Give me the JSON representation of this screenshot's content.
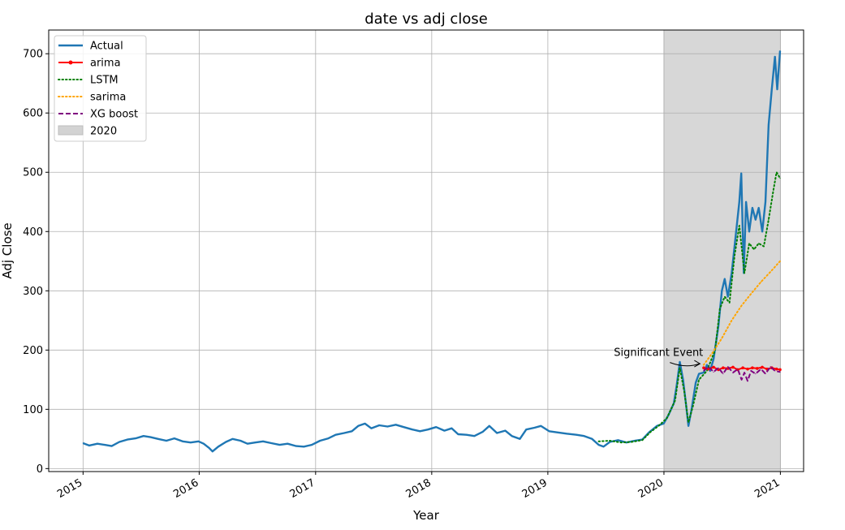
{
  "chart_data": {
    "type": "line",
    "title": "date vs adj close",
    "xlabel": "Year",
    "ylabel": "Adj Close",
    "xlim": [
      "2014-09-15",
      "2021-03-15"
    ],
    "ylim": [
      -5,
      740
    ],
    "x_ticks": [
      "2015",
      "2016",
      "2017",
      "2018",
      "2019",
      "2020",
      "2021"
    ],
    "y_ticks": [
      0,
      100,
      200,
      300,
      400,
      500,
      600,
      700
    ],
    "grid": true,
    "legend_position": "top-left",
    "shaded_region": {
      "label": "2020",
      "start": "2020-01-01",
      "end": "2021-01-01",
      "color": "#d3d3d3"
    },
    "annotation": {
      "text": "Significant Event",
      "point": {
        "x": "2020-05-01",
        "y": 177
      },
      "text_at": {
        "x": "2019-12-15",
        "y": 190
      }
    },
    "series": [
      {
        "name": "Actual",
        "color": "#1f77b4",
        "style": "solid",
        "points": [
          [
            "2015-01-01",
            43
          ],
          [
            "2015-01-20",
            39
          ],
          [
            "2015-02-15",
            42
          ],
          [
            "2015-03-10",
            40
          ],
          [
            "2015-04-01",
            38
          ],
          [
            "2015-04-25",
            45
          ],
          [
            "2015-05-20",
            49
          ],
          [
            "2015-06-15",
            51
          ],
          [
            "2015-07-10",
            55
          ],
          [
            "2015-08-01",
            53
          ],
          [
            "2015-08-25",
            50
          ],
          [
            "2015-09-20",
            47
          ],
          [
            "2015-10-15",
            51
          ],
          [
            "2015-11-10",
            46
          ],
          [
            "2015-12-05",
            44
          ],
          [
            "2015-12-30",
            46
          ],
          [
            "2016-01-15",
            42
          ],
          [
            "2016-02-01",
            35
          ],
          [
            "2016-02-12",
            29
          ],
          [
            "2016-03-01",
            37
          ],
          [
            "2016-03-25",
            45
          ],
          [
            "2016-04-15",
            50
          ],
          [
            "2016-05-10",
            47
          ],
          [
            "2016-06-01",
            42
          ],
          [
            "2016-06-25",
            44
          ],
          [
            "2016-07-20",
            46
          ],
          [
            "2016-08-15",
            43
          ],
          [
            "2016-09-10",
            40
          ],
          [
            "2016-10-05",
            42
          ],
          [
            "2016-11-01",
            38
          ],
          [
            "2016-11-25",
            37
          ],
          [
            "2016-12-20",
            40
          ],
          [
            "2017-01-15",
            47
          ],
          [
            "2017-02-10",
            51
          ],
          [
            "2017-03-05",
            57
          ],
          [
            "2017-04-01",
            60
          ],
          [
            "2017-04-25",
            63
          ],
          [
            "2017-05-15",
            72
          ],
          [
            "2017-06-05",
            76
          ],
          [
            "2017-06-25",
            68
          ],
          [
            "2017-07-20",
            73
          ],
          [
            "2017-08-15",
            71
          ],
          [
            "2017-09-10",
            74
          ],
          [
            "2017-10-05",
            70
          ],
          [
            "2017-11-01",
            66
          ],
          [
            "2017-11-25",
            63
          ],
          [
            "2017-12-20",
            66
          ],
          [
            "2018-01-15",
            70
          ],
          [
            "2018-02-10",
            64
          ],
          [
            "2018-03-05",
            68
          ],
          [
            "2018-03-25",
            58
          ],
          [
            "2018-04-20",
            57
          ],
          [
            "2018-05-15",
            55
          ],
          [
            "2018-06-10",
            62
          ],
          [
            "2018-07-01",
            72
          ],
          [
            "2018-07-25",
            60
          ],
          [
            "2018-08-20",
            64
          ],
          [
            "2018-09-10",
            55
          ],
          [
            "2018-10-05",
            50
          ],
          [
            "2018-10-25",
            66
          ],
          [
            "2018-11-20",
            69
          ],
          [
            "2018-12-10",
            72
          ],
          [
            "2019-01-05",
            63
          ],
          [
            "2019-02-01",
            61
          ],
          [
            "2019-03-01",
            59
          ],
          [
            "2019-04-01",
            57
          ],
          [
            "2019-04-25",
            55
          ],
          [
            "2019-05-20",
            50
          ],
          [
            "2019-06-10",
            40
          ],
          [
            "2019-06-25",
            37
          ],
          [
            "2019-07-15",
            45
          ],
          [
            "2019-08-10",
            48
          ],
          [
            "2019-09-05",
            44
          ],
          [
            "2019-10-01",
            47
          ],
          [
            "2019-10-25",
            49
          ],
          [
            "2019-11-15",
            61
          ],
          [
            "2019-12-10",
            72
          ],
          [
            "2019-12-31",
            76
          ],
          [
            "2020-01-15",
            90
          ],
          [
            "2020-02-01",
            110
          ],
          [
            "2020-02-10",
            140
          ],
          [
            "2020-02-20",
            180
          ],
          [
            "2020-03-01",
            150
          ],
          [
            "2020-03-10",
            110
          ],
          [
            "2020-03-18",
            72
          ],
          [
            "2020-03-28",
            100
          ],
          [
            "2020-04-10",
            145
          ],
          [
            "2020-04-20",
            160
          ],
          [
            "2020-05-05",
            162
          ],
          [
            "2020-05-15",
            175
          ],
          [
            "2020-05-25",
            165
          ],
          [
            "2020-06-05",
            185
          ],
          [
            "2020-06-20",
            240
          ],
          [
            "2020-07-01",
            300
          ],
          [
            "2020-07-10",
            320
          ],
          [
            "2020-07-20",
            290
          ],
          [
            "2020-08-01",
            330
          ],
          [
            "2020-08-15",
            400
          ],
          [
            "2020-08-25",
            450
          ],
          [
            "2020-08-31",
            498
          ],
          [
            "2020-09-08",
            330
          ],
          [
            "2020-09-15",
            450
          ],
          [
            "2020-09-25",
            400
          ],
          [
            "2020-10-05",
            440
          ],
          [
            "2020-10-15",
            420
          ],
          [
            "2020-10-25",
            440
          ],
          [
            "2020-11-05",
            400
          ],
          [
            "2020-11-15",
            450
          ],
          [
            "2020-11-25",
            580
          ],
          [
            "2020-12-05",
            640
          ],
          [
            "2020-12-15",
            695
          ],
          [
            "2020-12-22",
            640
          ],
          [
            "2020-12-31",
            705
          ]
        ]
      },
      {
        "name": "arima",
        "color": "#ff0000",
        "style": "solid-marker",
        "points": [
          [
            "2020-05-05",
            170
          ],
          [
            "2020-05-20",
            168
          ],
          [
            "2020-06-05",
            171
          ],
          [
            "2020-06-20",
            167
          ],
          [
            "2020-07-05",
            170
          ],
          [
            "2020-07-20",
            169
          ],
          [
            "2020-08-05",
            171
          ],
          [
            "2020-08-20",
            167
          ],
          [
            "2020-09-05",
            170
          ],
          [
            "2020-09-20",
            168
          ],
          [
            "2020-10-05",
            170
          ],
          [
            "2020-10-20",
            169
          ],
          [
            "2020-11-05",
            171
          ],
          [
            "2020-11-20",
            168
          ],
          [
            "2020-12-05",
            170
          ],
          [
            "2020-12-20",
            168
          ],
          [
            "2020-12-31",
            167
          ]
        ]
      },
      {
        "name": "LSTM",
        "color": "#008000",
        "style": "dotted",
        "points": [
          [
            "2019-06-10",
            46
          ],
          [
            "2019-07-15",
            47
          ],
          [
            "2019-08-20",
            44
          ],
          [
            "2019-09-20",
            45
          ],
          [
            "2019-10-25",
            48
          ],
          [
            "2019-11-20",
            62
          ],
          [
            "2019-12-15",
            72
          ],
          [
            "2020-01-10",
            85
          ],
          [
            "2020-02-05",
            115
          ],
          [
            "2020-02-20",
            170
          ],
          [
            "2020-03-05",
            130
          ],
          [
            "2020-03-18",
            78
          ],
          [
            "2020-04-01",
            105
          ],
          [
            "2020-04-20",
            150
          ],
          [
            "2020-05-15",
            165
          ],
          [
            "2020-06-10",
            200
          ],
          [
            "2020-06-25",
            270
          ],
          [
            "2020-07-10",
            290
          ],
          [
            "2020-07-25",
            280
          ],
          [
            "2020-08-10",
            360
          ],
          [
            "2020-08-25",
            410
          ],
          [
            "2020-09-10",
            330
          ],
          [
            "2020-09-25",
            380
          ],
          [
            "2020-10-10",
            370
          ],
          [
            "2020-10-25",
            380
          ],
          [
            "2020-11-10",
            375
          ],
          [
            "2020-11-25",
            420
          ],
          [
            "2020-12-10",
            470
          ],
          [
            "2020-12-20",
            500
          ],
          [
            "2020-12-31",
            490
          ]
        ]
      },
      {
        "name": "sarima",
        "color": "#ffa500",
        "style": "dotted",
        "points": [
          [
            "2020-05-05",
            175
          ],
          [
            "2020-06-01",
            195
          ],
          [
            "2020-07-01",
            220
          ],
          [
            "2020-08-01",
            250
          ],
          [
            "2020-09-01",
            275
          ],
          [
            "2020-10-01",
            295
          ],
          [
            "2020-11-01",
            315
          ],
          [
            "2020-12-01",
            332
          ],
          [
            "2020-12-31",
            350
          ]
        ]
      },
      {
        "name": "XG boost",
        "color": "#800080",
        "style": "dashed",
        "points": [
          [
            "2020-05-05",
            165
          ],
          [
            "2020-05-20",
            172
          ],
          [
            "2020-06-05",
            163
          ],
          [
            "2020-06-20",
            170
          ],
          [
            "2020-07-05",
            160
          ],
          [
            "2020-07-20",
            172
          ],
          [
            "2020-08-05",
            162
          ],
          [
            "2020-08-20",
            168
          ],
          [
            "2020-09-01",
            150
          ],
          [
            "2020-09-10",
            162
          ],
          [
            "2020-09-20",
            148
          ],
          [
            "2020-10-01",
            165
          ],
          [
            "2020-10-15",
            160
          ],
          [
            "2020-11-01",
            168
          ],
          [
            "2020-11-15",
            160
          ],
          [
            "2020-12-01",
            172
          ],
          [
            "2020-12-15",
            165
          ],
          [
            "2020-12-31",
            163
          ]
        ]
      }
    ]
  }
}
